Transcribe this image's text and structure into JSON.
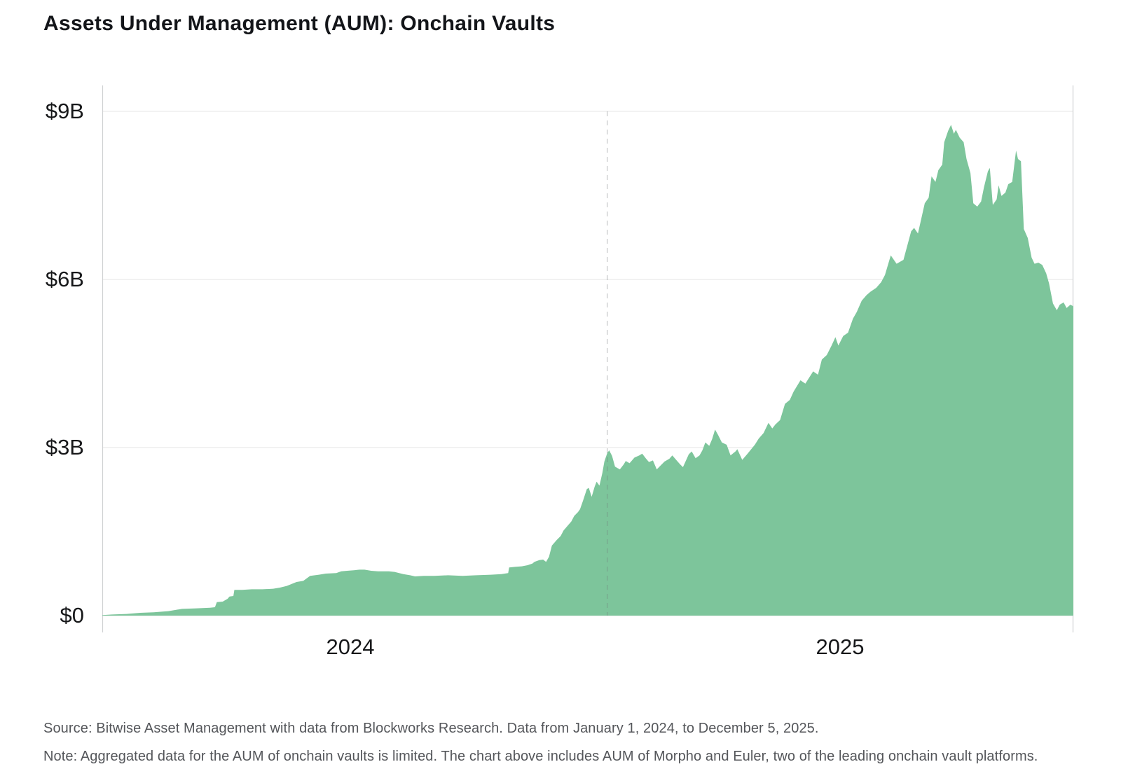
{
  "title": "Assets Under Management (AUM): Onchain Vaults",
  "footer": {
    "source": "Source: Bitwise Asset Management with data from Blockworks Research. Data from January 1, 2024, to December 5, 2025.",
    "note": "Note: Aggregated data for the AUM of onchain vaults is limited. The chart above includes AUM of Morpho and Euler, two of the leading onchain vault platforms."
  },
  "colors": {
    "area_green": "#7dc59b",
    "grid": "#e4e5e6",
    "axis": "#cfd1d3",
    "divider": "#6f7475",
    "title_text": "#131519",
    "tick_text": "#17181a",
    "footer_text": "#54565a",
    "background": "#ffffff"
  },
  "chart_data": {
    "type": "area",
    "title": "Assets Under Management (AUM): Onchain Vaults",
    "unit": "USD billions",
    "x_range": [
      "2024-01-01",
      "2025-12-05"
    ],
    "x_tick_labels": [
      "2024",
      "2025"
    ],
    "y_tick_labels": [
      "$9B",
      "$6B",
      "$3B",
      "$0"
    ],
    "y_tick_values": [
      9,
      6,
      3,
      0
    ],
    "ylim": [
      0,
      9
    ],
    "grid": "horizontal",
    "legend": "none",
    "divider_t": 0.52,
    "divider_date": "2025-01-01",
    "peak_value_billions": 8.76,
    "end_value_billions": 5.52,
    "points": [
      [
        0,
        0.01
      ],
      [
        0.01,
        0.02
      ],
      [
        0.025,
        0.03
      ],
      [
        0.039,
        0.05
      ],
      [
        0.053,
        0.06
      ],
      [
        0.068,
        0.08
      ],
      [
        0.075,
        0.1
      ],
      [
        0.082,
        0.12
      ],
      [
        0.097,
        0.13
      ],
      [
        0.111,
        0.14
      ],
      [
        0.116,
        0.15
      ],
      [
        0.118,
        0.24
      ],
      [
        0.124,
        0.25
      ],
      [
        0.129,
        0.3
      ],
      [
        0.131,
        0.34
      ],
      [
        0.135,
        0.35
      ],
      [
        0.136,
        0.46
      ],
      [
        0.144,
        0.46
      ],
      [
        0.154,
        0.47
      ],
      [
        0.165,
        0.47
      ],
      [
        0.176,
        0.48
      ],
      [
        0.183,
        0.5
      ],
      [
        0.19,
        0.53
      ],
      [
        0.2,
        0.6
      ],
      [
        0.207,
        0.62
      ],
      [
        0.214,
        0.71
      ],
      [
        0.223,
        0.73
      ],
      [
        0.23,
        0.75
      ],
      [
        0.241,
        0.76
      ],
      [
        0.246,
        0.79
      ],
      [
        0.252,
        0.8
      ],
      [
        0.259,
        0.81
      ],
      [
        0.265,
        0.82
      ],
      [
        0.27,
        0.82
      ],
      [
        0.277,
        0.8
      ],
      [
        0.284,
        0.79
      ],
      [
        0.295,
        0.79
      ],
      [
        0.301,
        0.78
      ],
      [
        0.31,
        0.74
      ],
      [
        0.317,
        0.72
      ],
      [
        0.322,
        0.7
      ],
      [
        0.331,
        0.71
      ],
      [
        0.342,
        0.71
      ],
      [
        0.356,
        0.72
      ],
      [
        0.371,
        0.71
      ],
      [
        0.385,
        0.72
      ],
      [
        0.4,
        0.73
      ],
      [
        0.411,
        0.74
      ],
      [
        0.418,
        0.76
      ],
      [
        0.419,
        0.86
      ],
      [
        0.425,
        0.87
      ],
      [
        0.432,
        0.88
      ],
      [
        0.438,
        0.9
      ],
      [
        0.443,
        0.93
      ],
      [
        0.445,
        0.96
      ],
      [
        0.45,
        0.99
      ],
      [
        0.454,
        1
      ],
      [
        0.457,
        0.96
      ],
      [
        0.46,
        1.05
      ],
      [
        0.463,
        1.25
      ],
      [
        0.468,
        1.35
      ],
      [
        0.472,
        1.42
      ],
      [
        0.475,
        1.52
      ],
      [
        0.479,
        1.6
      ],
      [
        0.483,
        1.68
      ],
      [
        0.486,
        1.78
      ],
      [
        0.49,
        1.85
      ],
      [
        0.492,
        1.9
      ],
      [
        0.495,
        2.05
      ],
      [
        0.499,
        2.26
      ],
      [
        0.501,
        2.28
      ],
      [
        0.504,
        2.12
      ],
      [
        0.507,
        2.3
      ],
      [
        0.509,
        2.39
      ],
      [
        0.512,
        2.32
      ],
      [
        0.515,
        2.55
      ],
      [
        0.517,
        2.75
      ],
      [
        0.52,
        2.9
      ],
      [
        0.522,
        2.95
      ],
      [
        0.525,
        2.85
      ],
      [
        0.528,
        2.66
      ],
      [
        0.533,
        2.61
      ],
      [
        0.537,
        2.7
      ],
      [
        0.539,
        2.76
      ],
      [
        0.543,
        2.72
      ],
      [
        0.548,
        2.82
      ],
      [
        0.553,
        2.86
      ],
      [
        0.556,
        2.89
      ],
      [
        0.56,
        2.8
      ],
      [
        0.563,
        2.74
      ],
      [
        0.567,
        2.77
      ],
      [
        0.571,
        2.61
      ],
      [
        0.575,
        2.68
      ],
      [
        0.579,
        2.75
      ],
      [
        0.584,
        2.8
      ],
      [
        0.587,
        2.86
      ],
      [
        0.591,
        2.78
      ],
      [
        0.595,
        2.7
      ],
      [
        0.598,
        2.65
      ],
      [
        0.604,
        2.88
      ],
      [
        0.607,
        2.93
      ],
      [
        0.611,
        2.81
      ],
      [
        0.615,
        2.86
      ],
      [
        0.618,
        2.95
      ],
      [
        0.621,
        3.09
      ],
      [
        0.625,
        3.03
      ],
      [
        0.628,
        3.15
      ],
      [
        0.631,
        3.32
      ],
      [
        0.634,
        3.23
      ],
      [
        0.638,
        3.09
      ],
      [
        0.643,
        3.05
      ],
      [
        0.647,
        2.86
      ],
      [
        0.652,
        2.93
      ],
      [
        0.654,
        2.97
      ],
      [
        0.659,
        2.78
      ],
      [
        0.664,
        2.88
      ],
      [
        0.672,
        3.05
      ],
      [
        0.676,
        3.16
      ],
      [
        0.681,
        3.26
      ],
      [
        0.686,
        3.44
      ],
      [
        0.69,
        3.34
      ],
      [
        0.693,
        3.41
      ],
      [
        0.698,
        3.49
      ],
      [
        0.703,
        3.78
      ],
      [
        0.708,
        3.85
      ],
      [
        0.712,
        4
      ],
      [
        0.719,
        4.2
      ],
      [
        0.724,
        4.14
      ],
      [
        0.732,
        4.36
      ],
      [
        0.737,
        4.3
      ],
      [
        0.741,
        4.57
      ],
      [
        0.746,
        4.65
      ],
      [
        0.751,
        4.82
      ],
      [
        0.755,
        4.97
      ],
      [
        0.758,
        4.82
      ],
      [
        0.763,
        4.99
      ],
      [
        0.768,
        5.05
      ],
      [
        0.773,
        5.3
      ],
      [
        0.777,
        5.42
      ],
      [
        0.782,
        5.62
      ],
      [
        0.787,
        5.72
      ],
      [
        0.791,
        5.78
      ],
      [
        0.797,
        5.85
      ],
      [
        0.802,
        5.95
      ],
      [
        0.806,
        6.08
      ],
      [
        0.812,
        6.43
      ],
      [
        0.818,
        6.28
      ],
      [
        0.825,
        6.35
      ],
      [
        0.833,
        6.86
      ],
      [
        0.836,
        6.92
      ],
      [
        0.84,
        6.82
      ],
      [
        0.847,
        7.36
      ],
      [
        0.851,
        7.46
      ],
      [
        0.854,
        7.84
      ],
      [
        0.858,
        7.74
      ],
      [
        0.861,
        7.95
      ],
      [
        0.865,
        8.05
      ],
      [
        0.867,
        8.45
      ],
      [
        0.871,
        8.65
      ],
      [
        0.874,
        8.76
      ],
      [
        0.877,
        8.6
      ],
      [
        0.879,
        8.67
      ],
      [
        0.883,
        8.53
      ],
      [
        0.887,
        8.45
      ],
      [
        0.89,
        8.15
      ],
      [
        0.894,
        7.9
      ],
      [
        0.897,
        7.36
      ],
      [
        0.901,
        7.3
      ],
      [
        0.905,
        7.39
      ],
      [
        0.908,
        7.65
      ],
      [
        0.912,
        7.93
      ],
      [
        0.914,
        7.99
      ],
      [
        0.917,
        7.33
      ],
      [
        0.921,
        7.43
      ],
      [
        0.923,
        7.68
      ],
      [
        0.926,
        7.49
      ],
      [
        0.93,
        7.55
      ],
      [
        0.933,
        7.7
      ],
      [
        0.937,
        7.74
      ],
      [
        0.941,
        8.3
      ],
      [
        0.943,
        8.15
      ],
      [
        0.946,
        8.11
      ],
      [
        0.949,
        6.9
      ],
      [
        0.953,
        6.74
      ],
      [
        0.957,
        6.39
      ],
      [
        0.96,
        6.28
      ],
      [
        0.964,
        6.3
      ],
      [
        0.968,
        6.26
      ],
      [
        0.972,
        6.11
      ],
      [
        0.975,
        5.93
      ],
      [
        0.979,
        5.57
      ],
      [
        0.983,
        5.45
      ],
      [
        0.986,
        5.55
      ],
      [
        0.99,
        5.59
      ],
      [
        0.993,
        5.49
      ],
      [
        0.997,
        5.55
      ],
      [
        1,
        5.52
      ]
    ]
  }
}
